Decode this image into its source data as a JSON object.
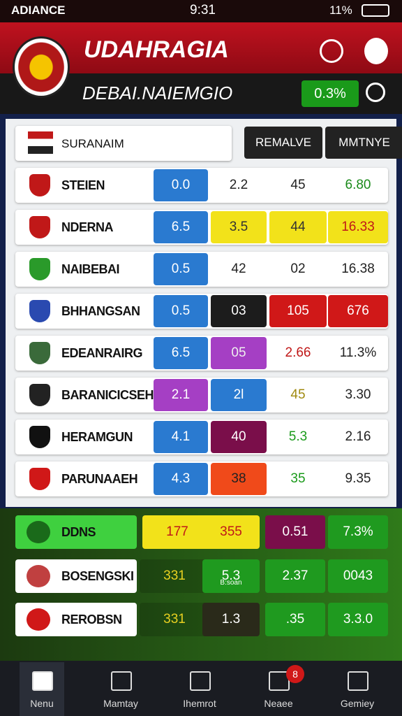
{
  "status": {
    "carrier": "ADIANCE",
    "time": "9:31",
    "battery": "11%"
  },
  "header": {
    "title": "UDAHRAGIA",
    "subtitle": "DEBAI.NAIEMGIO",
    "badge": "0.3%"
  },
  "filter": {
    "selected": "SURANAIM",
    "buttons": [
      "REMALVE",
      "MMTNYE"
    ]
  },
  "table": {
    "rows": [
      [
        "STEIEN",
        "0.0",
        "2.2",
        "45",
        "6.80"
      ],
      [
        "NDERNA",
        "6.5",
        "3.5",
        "44",
        "16.33"
      ],
      [
        "NAIBEBAI",
        "0.5",
        "42",
        "02",
        "16.38"
      ],
      [
        "BHHANGSAN",
        "0.5",
        "03",
        "105",
        "676"
      ],
      [
        "EDEANRAIRG",
        "6.5",
        "05",
        "2.66",
        "11.3%"
      ],
      [
        "BARANICICSEH",
        "2.1",
        "2l",
        "45",
        "3.30"
      ],
      [
        "HERAMGUN",
        "4.1",
        "40",
        "5.3",
        "2.16"
      ],
      [
        "PARUNAAEH",
        "4.3",
        "38",
        "35",
        "9.35"
      ]
    ]
  },
  "section": {
    "rows": [
      [
        "DDNS",
        "177",
        "355",
        "0.51",
        "7.3%"
      ],
      [
        "BOSENGSKI",
        "331",
        "5.3",
        "2.37",
        "0043"
      ],
      [
        "REROBSN",
        "331",
        "1.3",
        ".35",
        "3.3.0"
      ]
    ],
    "note": "B:soan"
  },
  "nav": {
    "items": [
      "Nenu",
      "Mamtay",
      "Ihemrot",
      "Neaee",
      "Gemiey"
    ],
    "badge": "8"
  }
}
